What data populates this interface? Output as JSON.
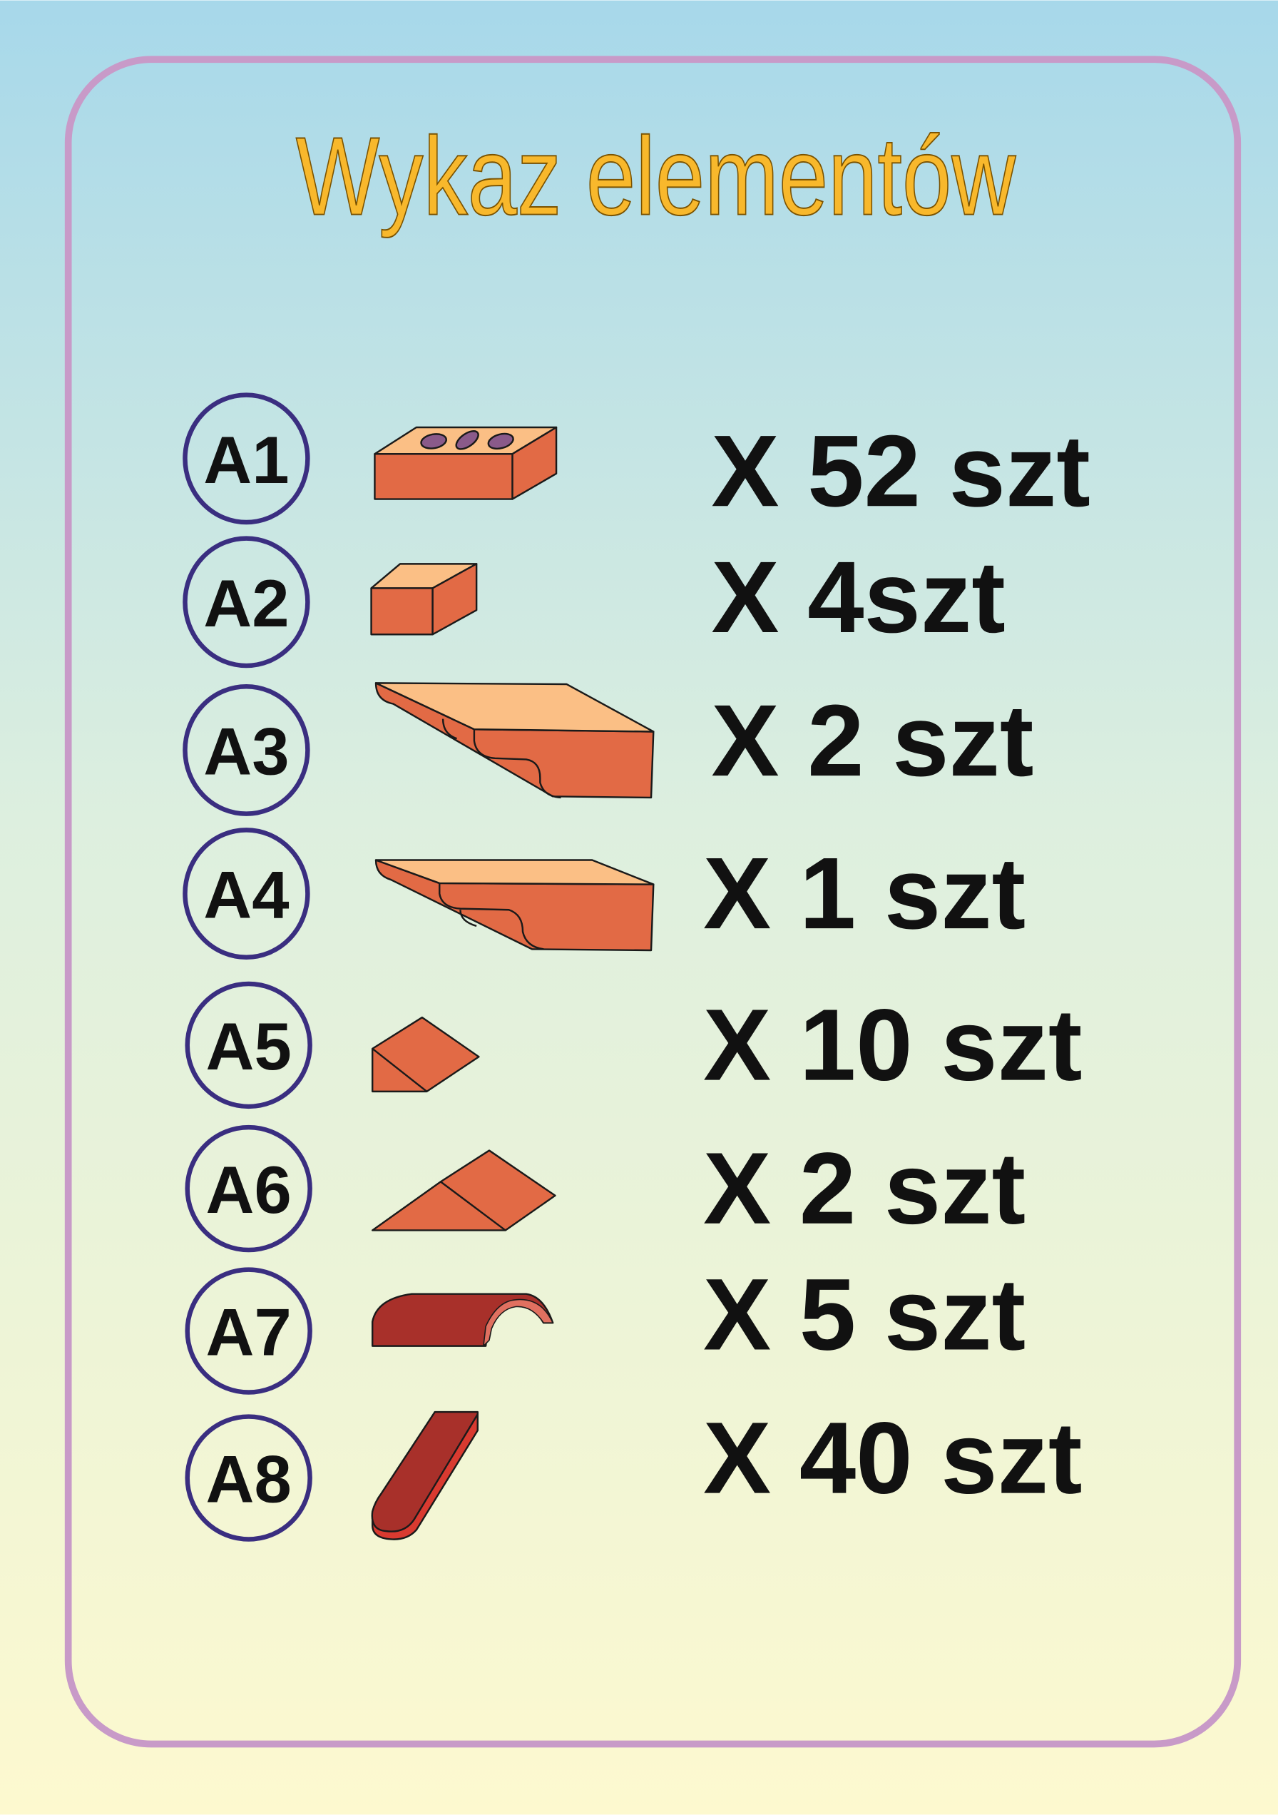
{
  "title": "Wykaz elementów",
  "colors": {
    "title_fill": "#f8b82c",
    "border": "#c89ac8",
    "circle": "#3a2e80",
    "brick_front": "#e26a45",
    "brick_top": "#fbbf85",
    "tile_red": "#a8302a"
  },
  "items": [
    {
      "label": "A1",
      "quantity": "X 52 szt",
      "icon": "perforated-brick-icon"
    },
    {
      "label": "A2",
      "quantity": "X 4szt",
      "icon": "half-brick-icon"
    },
    {
      "label": "A3",
      "quantity": "X 2 szt",
      "icon": "profiled-brick-icon"
    },
    {
      "label": "A4",
      "quantity": "X 1 szt",
      "icon": "profiled-brick-short-icon"
    },
    {
      "label": "A5",
      "quantity": "X 10 szt",
      "icon": "small-wedge-icon"
    },
    {
      "label": "A6",
      "quantity": "X 2 szt",
      "icon": "large-wedge-icon"
    },
    {
      "label": "A7",
      "quantity": "X 5 szt",
      "icon": "ridge-tile-icon"
    },
    {
      "label": "A8",
      "quantity": "X 40 szt",
      "icon": "roof-tile-icon"
    }
  ]
}
